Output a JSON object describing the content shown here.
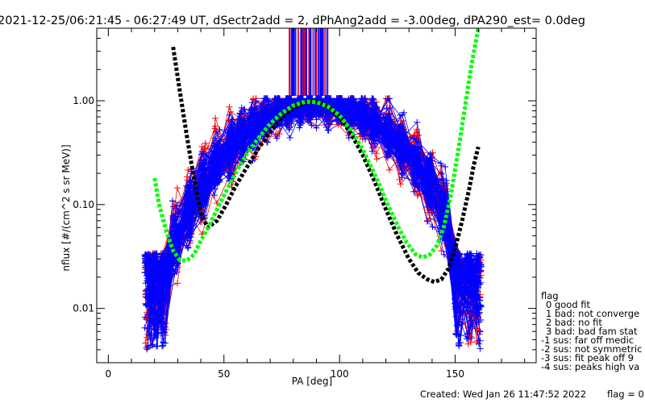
{
  "header": {
    "title": "2021-12-25/06:21:45 - 06:27:49 UT, dSectr2add = 2, dPhAng2add = -3.00deg, dPA290_est= 0.0deg"
  },
  "legend": {
    "title": "flag",
    "items": [
      "0 good fit",
      "1 bad: not converge",
      "2 bad: no fit",
      "3 bad: bad fam stat",
      "-1 sus: far off medic",
      "-2 sus: not symmetric",
      "-3 sus: fit peak off 9",
      "-4 sus: peaks high va"
    ]
  },
  "footer": {
    "created": "Created: Wed Jan 26 11:47:52 2022",
    "flag": "flag = 0"
  },
  "colors": {
    "red": "#ff0000",
    "blue": "#0000ff",
    "black": "#000000",
    "green": "#00ff00"
  },
  "chart_data": {
    "type": "scatter",
    "xlabel": "PA [deg]",
    "ylabel": "nflux [#/(cm^2 s sr MeV)]",
    "xlim": [
      -5,
      185
    ],
    "ylim": [
      0.003,
      5
    ],
    "yscale": "log",
    "x_ticks": [
      0,
      50,
      100,
      150
    ],
    "x_tick_labels": [
      "0",
      "50",
      "100",
      "150"
    ],
    "y_ticks": [
      0.01,
      0.1,
      1.0
    ],
    "y_tick_labels": [
      "0.01",
      "0.10",
      "1.00"
    ],
    "series": [
      {
        "color": "black",
        "style": "thick-dashed",
        "x": [
          28,
          31,
          34,
          37,
          40,
          43,
          47,
          51,
          55,
          60,
          65,
          70,
          75,
          80,
          85,
          90,
          95,
          100,
          105,
          110,
          115,
          120,
          125,
          130,
          134,
          138,
          141,
          144,
          147,
          150,
          153,
          156,
          158,
          160
        ],
        "y": [
          3.3,
          1.2,
          0.45,
          0.18,
          0.082,
          0.06,
          0.07,
          0.1,
          0.15,
          0.23,
          0.35,
          0.5,
          0.7,
          0.86,
          0.96,
          0.98,
          0.88,
          0.7,
          0.48,
          0.3,
          0.17,
          0.09,
          0.05,
          0.03,
          0.022,
          0.019,
          0.018,
          0.019,
          0.024,
          0.038,
          0.07,
          0.14,
          0.24,
          0.36
        ]
      },
      {
        "color": "green",
        "style": "thick-dashed",
        "x": [
          20,
          22,
          25,
          28,
          31,
          34,
          37,
          40,
          44,
          48,
          52,
          56,
          60,
          65,
          70,
          75,
          80,
          85,
          90,
          95,
          100,
          105,
          110,
          115,
          120,
          125,
          129,
          133,
          136,
          139,
          142,
          145,
          148,
          151,
          154,
          157,
          160
        ],
        "y": [
          0.18,
          0.1,
          0.056,
          0.036,
          0.029,
          0.029,
          0.033,
          0.045,
          0.065,
          0.1,
          0.15,
          0.22,
          0.31,
          0.44,
          0.6,
          0.76,
          0.9,
          0.98,
          0.97,
          0.88,
          0.72,
          0.52,
          0.34,
          0.2,
          0.11,
          0.063,
          0.043,
          0.033,
          0.031,
          0.033,
          0.04,
          0.06,
          0.12,
          0.3,
          0.8,
          2.2,
          5.0
        ]
      }
    ]
  }
}
